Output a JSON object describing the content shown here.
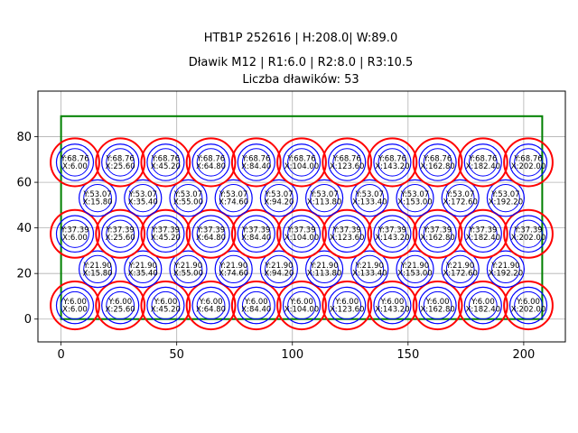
{
  "chart_data": {
    "type": "scatter",
    "title_lines": [
      "HTB1P 252616 | H:208.0| W:89.0",
      "Dławik M12 | R1:6.0 | R2:8.0 | R3:10.5",
      "Liczba dławików: 53"
    ],
    "xlim": [
      -10,
      218
    ],
    "ylim": [
      -10,
      100
    ],
    "x_ticks": [
      0,
      50,
      100,
      150,
      200
    ],
    "y_ticks": [
      0,
      20,
      40,
      60,
      80
    ],
    "grid": true,
    "boundary": {
      "x0": 0,
      "y0": 0,
      "x1": 208,
      "y1": 89,
      "color": "#008000"
    },
    "radii": {
      "r1": 6.0,
      "r2": 8.0,
      "r3": 10.5
    },
    "ring_colors": {
      "inner": "#0000ff",
      "middle": "#0000ff",
      "outer": "#ff0000"
    },
    "rows": [
      {
        "y": 6.0,
        "outer": true,
        "x": [
          6.0,
          25.6,
          45.2,
          64.8,
          84.4,
          104.0,
          123.6,
          143.2,
          162.8,
          182.4,
          202.0
        ],
        "labels": [
          [
            "X:6.00",
            "Y:6.00"
          ],
          [
            "X:25.60",
            "Y:6.00"
          ],
          [
            "X:45.20",
            "Y:6.00"
          ],
          [
            "X:64.80",
            "Y:6.00"
          ],
          [
            "X:84.40",
            "Y:6.00"
          ],
          [
            "X:104.00",
            "Y:6.00"
          ],
          [
            "X:123.60",
            "Y:6.00"
          ],
          [
            "X:143.20",
            "Y:6.00"
          ],
          [
            "X:162.80",
            "Y:6.00"
          ],
          [
            "X:182.40",
            "Y:6.00"
          ],
          [
            "X:202.00",
            "Y:6.00"
          ]
        ]
      },
      {
        "y": 21.9,
        "outer": false,
        "x": [
          15.8,
          35.4,
          55.0,
          74.6,
          94.2,
          113.8,
          133.4,
          153.0,
          172.6,
          192.2
        ],
        "labels": [
          [
            "X:15.80",
            "Y:21.90"
          ],
          [
            "X:35.40",
            "Y:21.90"
          ],
          [
            "X:55.00",
            "Y:21.90"
          ],
          [
            "X:74.60",
            "Y:21.90"
          ],
          [
            "X:94.20",
            "Y:21.90"
          ],
          [
            "X:113.80",
            "Y:21.90"
          ],
          [
            "X:133.40",
            "Y:21.90"
          ],
          [
            "X:153.00",
            "Y:21.90"
          ],
          [
            "X:172.60",
            "Y:21.90"
          ],
          [
            "X:192.20",
            "Y:21.90"
          ]
        ]
      },
      {
        "y": 37.39,
        "outer": true,
        "x": [
          6.0,
          25.6,
          45.2,
          64.8,
          84.4,
          104.0,
          123.6,
          143.2,
          162.8,
          182.4,
          202.0
        ],
        "labels": [
          [
            "X:6.00",
            "Y:37.39"
          ],
          [
            "X:25.60",
            "Y:37.39"
          ],
          [
            "X:45.20",
            "Y:37.39"
          ],
          [
            "X:64.80",
            "Y:37.39"
          ],
          [
            "X:84.40",
            "Y:37.39"
          ],
          [
            "X:104.00",
            "Y:37.39"
          ],
          [
            "X:123.60",
            "Y:37.39"
          ],
          [
            "X:143.20",
            "Y:37.39"
          ],
          [
            "X:162.80",
            "Y:37.39"
          ],
          [
            "X:182.40",
            "Y:37.39"
          ],
          [
            "X:202.00",
            "Y:37.39"
          ]
        ]
      },
      {
        "y": 53.07,
        "outer": false,
        "x": [
          15.8,
          35.4,
          55.0,
          74.6,
          94.2,
          113.8,
          133.4,
          153.0,
          172.6,
          192.2
        ],
        "labels": [
          [
            "X:15.80",
            "Y:53.07"
          ],
          [
            "X:35.40",
            "Y:53.07"
          ],
          [
            "X:55.00",
            "Y:53.07"
          ],
          [
            "X:74.60",
            "Y:53.07"
          ],
          [
            "X:94.20",
            "Y:53.07"
          ],
          [
            "X:113.80",
            "Y:53.07"
          ],
          [
            "X:133.40",
            "Y:53.07"
          ],
          [
            "X:153.00",
            "Y:53.07"
          ],
          [
            "X:172.60",
            "Y:53.07"
          ],
          [
            "X:192.20",
            "Y:53.07"
          ]
        ]
      },
      {
        "y": 68.76,
        "outer": true,
        "x": [
          6.0,
          25.6,
          45.2,
          64.8,
          84.4,
          104.0,
          123.6,
          143.2,
          162.8,
          182.4,
          202.0
        ],
        "labels": [
          [
            "X:6.00",
            "Y:68.76"
          ],
          [
            "X:25.60",
            "Y:68.76"
          ],
          [
            "X:45.20",
            "Y:68.76"
          ],
          [
            "X:64.80",
            "Y:68.76"
          ],
          [
            "X:84.40",
            "Y:68.76"
          ],
          [
            "X:104.00",
            "Y:68.76"
          ],
          [
            "X:123.60",
            "Y:68.76"
          ],
          [
            "X:143.20",
            "Y:68.76"
          ],
          [
            "X:162.80",
            "Y:68.76"
          ],
          [
            "X:182.40",
            "Y:68.76"
          ],
          [
            "X:202.00",
            "Y:68.76"
          ]
        ]
      }
    ]
  }
}
